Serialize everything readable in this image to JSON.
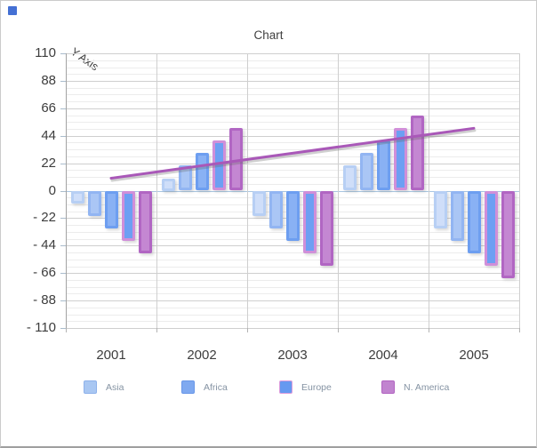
{
  "window": {
    "app_icon_color": "#4470d4"
  },
  "chart_data": {
    "type": "bar",
    "title": "Chart",
    "y_axis_label": "Y Axis",
    "categories": [
      "2001",
      "2002",
      "2003",
      "2004",
      "2005"
    ],
    "series": [
      {
        "name": "",
        "in_legend": false,
        "values": [
          -10,
          10,
          -20,
          20,
          -30
        ],
        "fill": "#cfdef9",
        "edge": "#b7cff4"
      },
      {
        "name": "Asia",
        "in_legend": true,
        "values": [
          -20,
          20,
          -30,
          30,
          -40
        ],
        "fill": "#aac6f5",
        "edge": "#92b5f2"
      },
      {
        "name": "Africa",
        "in_legend": true,
        "values": [
          -30,
          30,
          -40,
          40,
          -50
        ],
        "fill": "#89b1f4",
        "edge": "#6d9ef0"
      },
      {
        "name": "Europe",
        "in_legend": true,
        "values": [
          -40,
          40,
          -50,
          50,
          -60
        ],
        "fill": "#6d9ff3",
        "edge": "#d08fd9"
      },
      {
        "name": "N. America",
        "in_legend": true,
        "values": [
          -50,
          50,
          -60,
          60,
          -70
        ],
        "fill": "#c487d2",
        "edge": "#b166c3"
      }
    ],
    "trend_line": {
      "values": [
        10,
        20,
        30,
        40,
        50
      ],
      "color": "#a958b8"
    },
    "ylim": [
      -110,
      110
    ],
    "y_tick_values": [
      110,
      88,
      66,
      44,
      22,
      0,
      -22,
      -44,
      -66,
      -88,
      -110
    ],
    "y_tick_labels": [
      "110",
      "88",
      "66",
      "44",
      "22",
      "0",
      "- 22",
      "- 44",
      "- 66",
      "- 88",
      "- 110"
    ],
    "minor_divisions_per_major": 4,
    "grid": {
      "major": true,
      "minor": true,
      "vertical": true
    },
    "legend": {
      "position": "bottom",
      "entries": [
        {
          "label": "Asia",
          "fill": "#a9c7f2",
          "border": "#8db1ea"
        },
        {
          "label": "Africa",
          "fill": "#7fa9f0",
          "border": "#6997e8"
        },
        {
          "label": "Europe",
          "fill": "#6699f0",
          "border": "#dd9cdc"
        },
        {
          "label": "N. America",
          "fill": "#c184cf",
          "border": "#b164c1"
        }
      ]
    },
    "colors": {
      "major_grid": "#cfcfcf",
      "minor_grid": "#ececec",
      "zero_line": "#a9c7e3",
      "axis_line": "#a3a3a3",
      "tick": "#aabccc",
      "tick_label": "#3d3d3d",
      "legend_text": "#8593a3"
    }
  }
}
